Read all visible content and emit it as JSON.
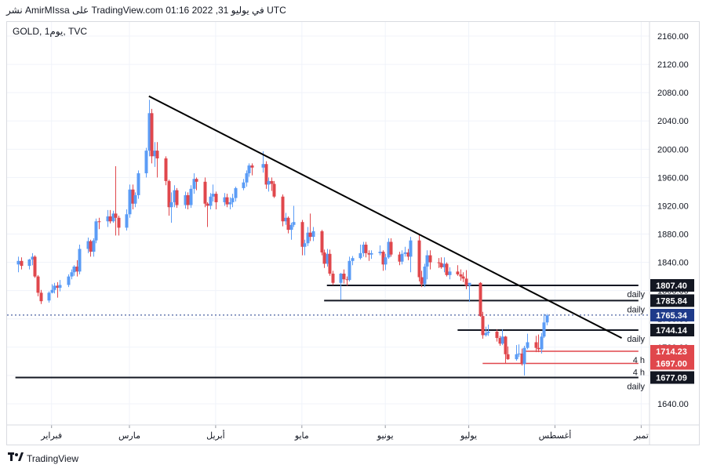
{
  "header": {
    "text": "نشر AmirMIssa على TradingView.com في يوليو 31, 2022 01:16 UTC"
  },
  "symbol": {
    "text": "GOLD, يوم1, TVC"
  },
  "footer": {
    "brand": "TradingView",
    "icon": "tradingview-logo-icon"
  },
  "colors": {
    "up": "#5b9cf6",
    "down": "#e0474c",
    "grid": "#f0f3fa",
    "price_line": "#1e3a8a"
  },
  "chart_data": {
    "type": "candlestick",
    "symbol": "GOLD",
    "timeframe": "1D",
    "ylim": [
      1610,
      2180
    ],
    "y_ticks": [
      "1640.00",
      "1680.00",
      "1720.00",
      "1760.00",
      "1800.00",
      "1840.00",
      "1880.00",
      "1920.00",
      "1960.00",
      "2000.00",
      "2040.00",
      "2080.00",
      "2120.00",
      "2160.00"
    ],
    "x_ticks": [
      {
        "label": "فبراير",
        "date": "2022-02-01"
      },
      {
        "label": "مارس",
        "date": "2022-03-01"
      },
      {
        "label": "أبريل",
        "date": "2022-04-01"
      },
      {
        "label": "مايو",
        "date": "2022-05-02"
      },
      {
        "label": "يونيو",
        "date": "2022-06-01"
      },
      {
        "label": "يوليو",
        "date": "2022-07-01"
      },
      {
        "label": "أغسطس",
        "date": "2022-08-01"
      },
      {
        "label": "تمبر",
        "date": "2022-09-01"
      }
    ],
    "current_price": {
      "value": "1765.34"
    },
    "levels": [
      {
        "price": "1807.40",
        "label": "daily",
        "color": "#131722",
        "start": "2022-05-11",
        "end": "2022-08-31"
      },
      {
        "price": "1785.84",
        "label": "daily",
        "color": "#131722",
        "start": "2022-05-10",
        "end": "2022-08-31"
      },
      {
        "price": "1744.14",
        "label": "daily",
        "color": "#131722",
        "start": "2022-06-27",
        "end": "2022-08-31"
      },
      {
        "price": "1714.23",
        "label": "4 h",
        "color": "#e0474c",
        "start": "2022-07-21",
        "end": "2022-08-31"
      },
      {
        "price": "1697.00",
        "label": "4 h",
        "color": "#e0474c",
        "start": "2022-07-06",
        "end": "2022-08-31"
      },
      {
        "price": "1677.09",
        "label": "daily",
        "color": "#131722",
        "start": "2022-01-19",
        "end": "2022-08-31"
      }
    ],
    "trendline": {
      "start": {
        "date": "2022-03-08",
        "price": 2075
      },
      "end": {
        "date": "2022-08-25",
        "price": 1733
      }
    },
    "candles": [
      {
        "date": "2022-01-20",
        "o": 1837,
        "h": 1848,
        "l": 1826,
        "c": 1842
      },
      {
        "date": "2022-01-21",
        "o": 1842,
        "h": 1847,
        "l": 1830,
        "c": 1835
      },
      {
        "date": "2022-01-24",
        "o": 1835,
        "h": 1845,
        "l": 1830,
        "c": 1844
      },
      {
        "date": "2022-01-25",
        "o": 1844,
        "h": 1853,
        "l": 1836,
        "c": 1848
      },
      {
        "date": "2022-01-26",
        "o": 1848,
        "h": 1850,
        "l": 1818,
        "c": 1820
      },
      {
        "date": "2022-01-27",
        "o": 1820,
        "h": 1822,
        "l": 1792,
        "c": 1797
      },
      {
        "date": "2022-01-28",
        "o": 1797,
        "h": 1801,
        "l": 1781,
        "c": 1785
      },
      {
        "date": "2022-01-31",
        "o": 1786,
        "h": 1799,
        "l": 1783,
        "c": 1797
      },
      {
        "date": "2022-02-01",
        "o": 1797,
        "h": 1809,
        "l": 1796,
        "c": 1801
      },
      {
        "date": "2022-02-02",
        "o": 1801,
        "h": 1811,
        "l": 1796,
        "c": 1807
      },
      {
        "date": "2022-02-03",
        "o": 1807,
        "h": 1812,
        "l": 1790,
        "c": 1804
      },
      {
        "date": "2022-02-04",
        "o": 1804,
        "h": 1815,
        "l": 1799,
        "c": 1808
      },
      {
        "date": "2022-02-07",
        "o": 1808,
        "h": 1823,
        "l": 1805,
        "c": 1820
      },
      {
        "date": "2022-02-08",
        "o": 1820,
        "h": 1830,
        "l": 1816,
        "c": 1826
      },
      {
        "date": "2022-02-09",
        "o": 1826,
        "h": 1836,
        "l": 1821,
        "c": 1834
      },
      {
        "date": "2022-02-10",
        "o": 1834,
        "h": 1843,
        "l": 1820,
        "c": 1827
      },
      {
        "date": "2022-02-11",
        "o": 1827,
        "h": 1865,
        "l": 1823,
        "c": 1859
      },
      {
        "date": "2022-02-14",
        "o": 1859,
        "h": 1875,
        "l": 1853,
        "c": 1870
      },
      {
        "date": "2022-02-15",
        "o": 1870,
        "h": 1872,
        "l": 1848,
        "c": 1855
      },
      {
        "date": "2022-02-16",
        "o": 1855,
        "h": 1874,
        "l": 1848,
        "c": 1871
      },
      {
        "date": "2022-02-17",
        "o": 1871,
        "h": 1902,
        "l": 1867,
        "c": 1898
      },
      {
        "date": "2022-02-18",
        "o": 1898,
        "h": 1903,
        "l": 1887,
        "c": 1897
      },
      {
        "date": "2022-02-21",
        "o": 1898,
        "h": 1914,
        "l": 1890,
        "c": 1905
      },
      {
        "date": "2022-02-22",
        "o": 1905,
        "h": 1914,
        "l": 1895,
        "c": 1898
      },
      {
        "date": "2022-02-23",
        "o": 1898,
        "h": 1913,
        "l": 1896,
        "c": 1909
      },
      {
        "date": "2022-02-24",
        "o": 1909,
        "h": 1976,
        "l": 1878,
        "c": 1903
      },
      {
        "date": "2022-02-25",
        "o": 1903,
        "h": 1906,
        "l": 1878,
        "c": 1889
      },
      {
        "date": "2022-02-28",
        "o": 1889,
        "h": 1915,
        "l": 1885,
        "c": 1908
      },
      {
        "date": "2022-03-01",
        "o": 1908,
        "h": 1950,
        "l": 1903,
        "c": 1943
      },
      {
        "date": "2022-03-02",
        "o": 1943,
        "h": 1950,
        "l": 1915,
        "c": 1923
      },
      {
        "date": "2022-03-03",
        "o": 1923,
        "h": 1939,
        "l": 1918,
        "c": 1935
      },
      {
        "date": "2022-03-04",
        "o": 1935,
        "h": 1970,
        "l": 1930,
        "c": 1966
      },
      {
        "date": "2022-03-07",
        "o": 1966,
        "h": 2002,
        "l": 1960,
        "c": 1998
      },
      {
        "date": "2022-03-08",
        "o": 1998,
        "h": 2070,
        "l": 1990,
        "c": 2051
      },
      {
        "date": "2022-03-09",
        "o": 2051,
        "h": 2057,
        "l": 1980,
        "c": 1990
      },
      {
        "date": "2022-03-10",
        "o": 1990,
        "h": 2010,
        "l": 1975,
        "c": 1998
      },
      {
        "date": "2022-03-11",
        "o": 1998,
        "h": 2010,
        "l": 1960,
        "c": 1987
      },
      {
        "date": "2022-03-14",
        "o": 1987,
        "h": 1990,
        "l": 1949,
        "c": 1955
      },
      {
        "date": "2022-03-15",
        "o": 1955,
        "h": 1957,
        "l": 1906,
        "c": 1918
      },
      {
        "date": "2022-03-16",
        "o": 1918,
        "h": 1939,
        "l": 1896,
        "c": 1925
      },
      {
        "date": "2022-03-17",
        "o": 1925,
        "h": 1949,
        "l": 1918,
        "c": 1942
      },
      {
        "date": "2022-03-18",
        "o": 1942,
        "h": 1945,
        "l": 1917,
        "c": 1921
      },
      {
        "date": "2022-03-21",
        "o": 1921,
        "h": 1940,
        "l": 1916,
        "c": 1935
      },
      {
        "date": "2022-03-22",
        "o": 1935,
        "h": 1939,
        "l": 1915,
        "c": 1921
      },
      {
        "date": "2022-03-23",
        "o": 1921,
        "h": 1949,
        "l": 1917,
        "c": 1944
      },
      {
        "date": "2022-03-24",
        "o": 1944,
        "h": 1966,
        "l": 1937,
        "c": 1958
      },
      {
        "date": "2022-03-25",
        "o": 1958,
        "h": 1960,
        "l": 1942,
        "c": 1954
      },
      {
        "date": "2022-03-28",
        "o": 1954,
        "h": 1960,
        "l": 1918,
        "c": 1923
      },
      {
        "date": "2022-03-29",
        "o": 1923,
        "h": 1925,
        "l": 1890,
        "c": 1920
      },
      {
        "date": "2022-03-30",
        "o": 1920,
        "h": 1938,
        "l": 1915,
        "c": 1933
      },
      {
        "date": "2022-03-31",
        "o": 1933,
        "h": 1950,
        "l": 1926,
        "c": 1937
      },
      {
        "date": "2022-04-01",
        "o": 1937,
        "h": 1940,
        "l": 1915,
        "c": 1925
      },
      {
        "date": "2022-04-04",
        "o": 1925,
        "h": 1938,
        "l": 1920,
        "c": 1932
      },
      {
        "date": "2022-04-05",
        "o": 1932,
        "h": 1937,
        "l": 1918,
        "c": 1922
      },
      {
        "date": "2022-04-06",
        "o": 1922,
        "h": 1932,
        "l": 1915,
        "c": 1925
      },
      {
        "date": "2022-04-07",
        "o": 1925,
        "h": 1937,
        "l": 1918,
        "c": 1931
      },
      {
        "date": "2022-04-08",
        "o": 1931,
        "h": 1947,
        "l": 1926,
        "c": 1945
      },
      {
        "date": "2022-04-11",
        "o": 1945,
        "h": 1958,
        "l": 1942,
        "c": 1953
      },
      {
        "date": "2022-04-12",
        "o": 1953,
        "h": 1970,
        "l": 1947,
        "c": 1966
      },
      {
        "date": "2022-04-13",
        "o": 1966,
        "h": 1980,
        "l": 1961,
        "c": 1977
      },
      {
        "date": "2022-04-14",
        "o": 1977,
        "h": 1980,
        "l": 1963,
        "c": 1974
      },
      {
        "date": "2022-04-18",
        "o": 1974,
        "h": 1997,
        "l": 1967,
        "c": 1979
      },
      {
        "date": "2022-04-19",
        "o": 1979,
        "h": 1983,
        "l": 1944,
        "c": 1950
      },
      {
        "date": "2022-04-20",
        "o": 1950,
        "h": 1960,
        "l": 1940,
        "c": 1955
      },
      {
        "date": "2022-04-21",
        "o": 1955,
        "h": 1960,
        "l": 1941,
        "c": 1951
      },
      {
        "date": "2022-04-22",
        "o": 1951,
        "h": 1955,
        "l": 1931,
        "c": 1933
      },
      {
        "date": "2022-04-25",
        "o": 1933,
        "h": 1936,
        "l": 1891,
        "c": 1898
      },
      {
        "date": "2022-04-26",
        "o": 1898,
        "h": 1910,
        "l": 1893,
        "c": 1903
      },
      {
        "date": "2022-04-27",
        "o": 1903,
        "h": 1905,
        "l": 1881,
        "c": 1886
      },
      {
        "date": "2022-04-28",
        "o": 1886,
        "h": 1896,
        "l": 1872,
        "c": 1893
      },
      {
        "date": "2022-04-29",
        "o": 1893,
        "h": 1920,
        "l": 1890,
        "c": 1897
      },
      {
        "date": "2022-05-02",
        "o": 1897,
        "h": 1900,
        "l": 1850,
        "c": 1862
      },
      {
        "date": "2022-05-03",
        "o": 1862,
        "h": 1872,
        "l": 1850,
        "c": 1867
      },
      {
        "date": "2022-05-04",
        "o": 1867,
        "h": 1890,
        "l": 1863,
        "c": 1882
      },
      {
        "date": "2022-05-05",
        "o": 1882,
        "h": 1909,
        "l": 1870,
        "c": 1876
      },
      {
        "date": "2022-05-06",
        "o": 1876,
        "h": 1890,
        "l": 1870,
        "c": 1884
      },
      {
        "date": "2022-05-09",
        "o": 1884,
        "h": 1886,
        "l": 1850,
        "c": 1854
      },
      {
        "date": "2022-05-10",
        "o": 1854,
        "h": 1858,
        "l": 1832,
        "c": 1838
      },
      {
        "date": "2022-05-11",
        "o": 1838,
        "h": 1859,
        "l": 1834,
        "c": 1852
      },
      {
        "date": "2022-05-12",
        "o": 1852,
        "h": 1858,
        "l": 1821,
        "c": 1824
      },
      {
        "date": "2022-05-13",
        "o": 1824,
        "h": 1828,
        "l": 1808,
        "c": 1811
      },
      {
        "date": "2022-05-16",
        "o": 1811,
        "h": 1825,
        "l": 1787,
        "c": 1824
      },
      {
        "date": "2022-05-17",
        "o": 1824,
        "h": 1830,
        "l": 1810,
        "c": 1816
      },
      {
        "date": "2022-05-18",
        "o": 1816,
        "h": 1820,
        "l": 1807,
        "c": 1815
      },
      {
        "date": "2022-05-19",
        "o": 1815,
        "h": 1848,
        "l": 1813,
        "c": 1842
      },
      {
        "date": "2022-05-20",
        "o": 1842,
        "h": 1849,
        "l": 1836,
        "c": 1846
      },
      {
        "date": "2022-05-23",
        "o": 1846,
        "h": 1865,
        "l": 1844,
        "c": 1853
      },
      {
        "date": "2022-05-24",
        "o": 1853,
        "h": 1869,
        "l": 1848,
        "c": 1865
      },
      {
        "date": "2022-05-25",
        "o": 1865,
        "h": 1869,
        "l": 1847,
        "c": 1853
      },
      {
        "date": "2022-05-26",
        "o": 1853,
        "h": 1857,
        "l": 1842,
        "c": 1851
      },
      {
        "date": "2022-05-27",
        "o": 1851,
        "h": 1857,
        "l": 1845,
        "c": 1853
      },
      {
        "date": "2022-05-30",
        "o": 1853,
        "h": 1864,
        "l": 1850,
        "c": 1855
      },
      {
        "date": "2022-05-31",
        "o": 1855,
        "h": 1857,
        "l": 1828,
        "c": 1837
      },
      {
        "date": "2022-06-01",
        "o": 1837,
        "h": 1852,
        "l": 1829,
        "c": 1847
      },
      {
        "date": "2022-06-02",
        "o": 1847,
        "h": 1874,
        "l": 1845,
        "c": 1869
      },
      {
        "date": "2022-06-03",
        "o": 1869,
        "h": 1874,
        "l": 1848,
        "c": 1851
      },
      {
        "date": "2022-06-06",
        "o": 1851,
        "h": 1855,
        "l": 1836,
        "c": 1841
      },
      {
        "date": "2022-06-07",
        "o": 1841,
        "h": 1857,
        "l": 1837,
        "c": 1852
      },
      {
        "date": "2022-06-08",
        "o": 1852,
        "h": 1862,
        "l": 1848,
        "c": 1854
      },
      {
        "date": "2022-06-09",
        "o": 1854,
        "h": 1859,
        "l": 1843,
        "c": 1848
      },
      {
        "date": "2022-06-10",
        "o": 1848,
        "h": 1876,
        "l": 1826,
        "c": 1871
      },
      {
        "date": "2022-06-13",
        "o": 1871,
        "h": 1879,
        "l": 1813,
        "c": 1819
      },
      {
        "date": "2022-06-14",
        "o": 1819,
        "h": 1828,
        "l": 1805,
        "c": 1809
      },
      {
        "date": "2022-06-15",
        "o": 1809,
        "h": 1838,
        "l": 1805,
        "c": 1834
      },
      {
        "date": "2022-06-16",
        "o": 1834,
        "h": 1857,
        "l": 1816,
        "c": 1850
      },
      {
        "date": "2022-06-17",
        "o": 1850,
        "h": 1857,
        "l": 1830,
        "c": 1840
      },
      {
        "date": "2022-06-20",
        "o": 1840,
        "h": 1846,
        "l": 1832,
        "c": 1839
      },
      {
        "date": "2022-06-21",
        "o": 1839,
        "h": 1847,
        "l": 1831,
        "c": 1833
      },
      {
        "date": "2022-06-22",
        "o": 1833,
        "h": 1847,
        "l": 1826,
        "c": 1838
      },
      {
        "date": "2022-06-23",
        "o": 1838,
        "h": 1840,
        "l": 1820,
        "c": 1822
      },
      {
        "date": "2022-06-24",
        "o": 1822,
        "h": 1833,
        "l": 1816,
        "c": 1827
      },
      {
        "date": "2022-06-27",
        "o": 1827,
        "h": 1836,
        "l": 1821,
        "c": 1823
      },
      {
        "date": "2022-06-28",
        "o": 1823,
        "h": 1830,
        "l": 1814,
        "c": 1820
      },
      {
        "date": "2022-06-29",
        "o": 1820,
        "h": 1826,
        "l": 1812,
        "c": 1817
      },
      {
        "date": "2022-06-30",
        "o": 1817,
        "h": 1829,
        "l": 1802,
        "c": 1807
      },
      {
        "date": "2022-07-01",
        "o": 1807,
        "h": 1811,
        "l": 1784,
        "c": 1811
      },
      {
        "date": "2022-07-05",
        "o": 1811,
        "h": 1812,
        "l": 1763,
        "c": 1764
      },
      {
        "date": "2022-07-06",
        "o": 1764,
        "h": 1770,
        "l": 1732,
        "c": 1737
      },
      {
        "date": "2022-07-07",
        "o": 1737,
        "h": 1749,
        "l": 1735,
        "c": 1740
      },
      {
        "date": "2022-07-08",
        "o": 1740,
        "h": 1752,
        "l": 1736,
        "c": 1742
      },
      {
        "date": "2022-07-11",
        "o": 1742,
        "h": 1745,
        "l": 1728,
        "c": 1733
      },
      {
        "date": "2022-07-12",
        "o": 1733,
        "h": 1736,
        "l": 1722,
        "c": 1725
      },
      {
        "date": "2022-07-13",
        "o": 1725,
        "h": 1745,
        "l": 1723,
        "c": 1735
      },
      {
        "date": "2022-07-14",
        "o": 1735,
        "h": 1736,
        "l": 1697,
        "c": 1710
      },
      {
        "date": "2022-07-15",
        "o": 1710,
        "h": 1721,
        "l": 1702,
        "c": 1703
      },
      {
        "date": "2022-07-18",
        "o": 1703,
        "h": 1723,
        "l": 1701,
        "c": 1710
      },
      {
        "date": "2022-07-19",
        "o": 1710,
        "h": 1724,
        "l": 1706,
        "c": 1711
      },
      {
        "date": "2022-07-20",
        "o": 1711,
        "h": 1718,
        "l": 1694,
        "c": 1696
      },
      {
        "date": "2022-07-21",
        "o": 1696,
        "h": 1722,
        "l": 1680,
        "c": 1719
      },
      {
        "date": "2022-07-22",
        "o": 1719,
        "h": 1739,
        "l": 1717,
        "c": 1727
      },
      {
        "date": "2022-07-25",
        "o": 1727,
        "h": 1736,
        "l": 1713,
        "c": 1719
      },
      {
        "date": "2022-07-26",
        "o": 1719,
        "h": 1738,
        "l": 1713,
        "c": 1717
      },
      {
        "date": "2022-07-27",
        "o": 1717,
        "h": 1740,
        "l": 1711,
        "c": 1735
      },
      {
        "date": "2022-07-28",
        "o": 1735,
        "h": 1767,
        "l": 1733,
        "c": 1755
      },
      {
        "date": "2022-07-29",
        "o": 1755,
        "h": 1767,
        "l": 1751,
        "c": 1765
      }
    ]
  }
}
